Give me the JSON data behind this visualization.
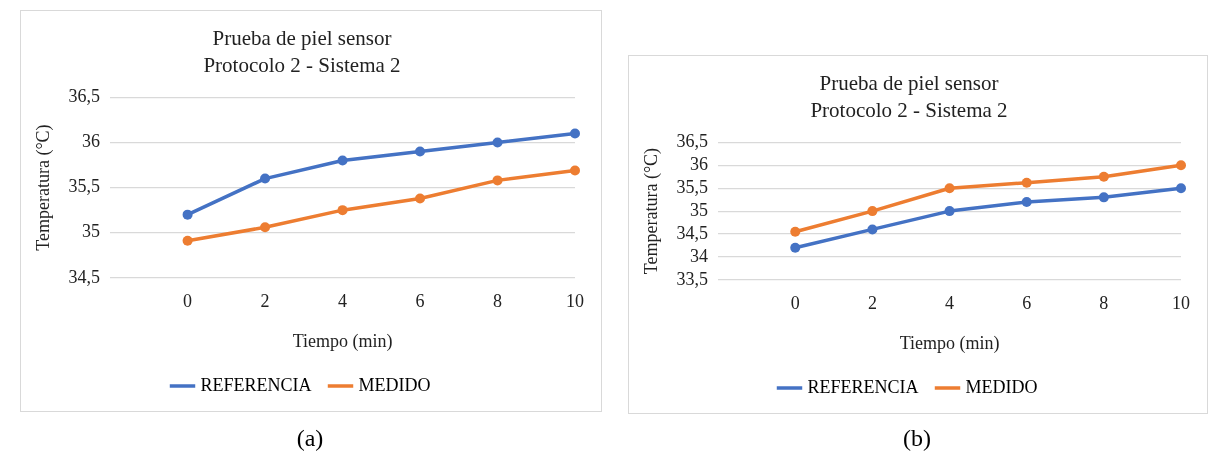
{
  "chart_data": [
    {
      "type": "line",
      "title": "Prueba de piel sensor",
      "subtitle": "Protocolo 2 - Sistema 2",
      "xlabel": "Tiempo (min)",
      "ylabel": "Temperatura (°C)",
      "categories": [
        null,
        "0",
        "2",
        "4",
        "6",
        "8",
        "10"
      ],
      "series": [
        {
          "name": "REFERENCIA",
          "color": "#4472c4",
          "values": [
            null,
            35.2,
            35.6,
            35.8,
            35.9,
            36.0,
            36.1
          ]
        },
        {
          "name": "MEDIDO",
          "color": "#ed7d31",
          "values": [
            null,
            34.91,
            35.06,
            35.25,
            35.38,
            35.58,
            35.69
          ]
        }
      ],
      "ylim": [
        34.5,
        36.5
      ],
      "yticks": [
        {
          "value": 34.5,
          "label": "34,5"
        },
        {
          "value": 35,
          "label": "35"
        },
        {
          "value": 35.5,
          "label": "35,5"
        },
        {
          "value": 36,
          "label": "36"
        },
        {
          "value": 36.5,
          "label": "36,5"
        }
      ],
      "grid": "y",
      "legend": "bottom",
      "marker": "circle",
      "line_style": "solid",
      "annotations": [
        "(a)"
      ]
    },
    {
      "type": "line",
      "title": "Prueba de piel sensor",
      "subtitle": "Protocolo 2 - Sistema 2",
      "xlabel": "Tiempo (min)",
      "ylabel": "Temperatura (°C)",
      "categories": [
        null,
        "0",
        "2",
        "4",
        "6",
        "8",
        "10"
      ],
      "series": [
        {
          "name": "REFERENCIA",
          "color": "#4472c4",
          "values": [
            null,
            34.2,
            34.6,
            35.0,
            35.2,
            35.3,
            35.5
          ]
        },
        {
          "name": "MEDIDO",
          "color": "#ed7d31",
          "values": [
            null,
            34.55,
            35.0,
            35.5,
            35.62,
            35.75,
            36.0
          ]
        }
      ],
      "ylim": [
        33.5,
        36.5
      ],
      "yticks": [
        {
          "value": 33.5,
          "label": "33,5"
        },
        {
          "value": 34,
          "label": "34"
        },
        {
          "value": 34.5,
          "label": "34,5"
        },
        {
          "value": 35,
          "label": "35"
        },
        {
          "value": 35.5,
          "label": "35,5"
        },
        {
          "value": 36,
          "label": "36"
        },
        {
          "value": 36.5,
          "label": "36,5"
        }
      ],
      "grid": "y",
      "legend": "bottom",
      "marker": "circle",
      "line_style": "solid",
      "annotations": [
        "(b)"
      ]
    }
  ]
}
